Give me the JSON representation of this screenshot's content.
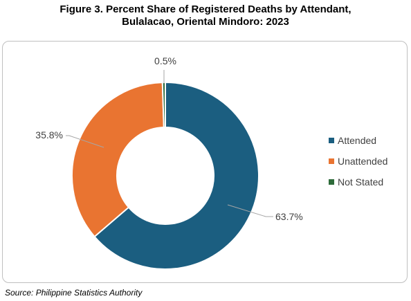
{
  "title": {
    "line1": "Figure 3. Percent Share of Registered Deaths by Attendant,",
    "line2": "Bulalacao, Oriental Mindoro: 2023"
  },
  "source": "Source: Philippine Statistics Authority",
  "colors": {
    "attended": "#1b5e80",
    "unattended": "#e97431",
    "not_stated": "#2e6b3a",
    "leader": "#a6a6a6",
    "frame": "#bfbfbf"
  },
  "chart_data": {
    "type": "pie",
    "donut": true,
    "title": "Figure 3. Percent Share of Registered Deaths by Attendant, Bulalacao, Oriental Mindoro: 2023",
    "categories": [
      "Attended",
      "Unattended",
      "Not Stated"
    ],
    "values": [
      63.7,
      35.8,
      0.5
    ],
    "unit": "%",
    "data_labels": [
      "63.7%",
      "35.8%",
      "0.5%"
    ],
    "legend_position": "right"
  }
}
